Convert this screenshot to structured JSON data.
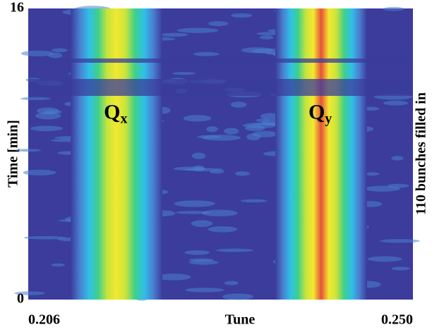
{
  "chart_data": {
    "type": "spectrogram",
    "x_label": "Tune",
    "y_label": "Time [min]",
    "right_label": "110 bunches filled in",
    "xlim": [
      0.206,
      0.25
    ],
    "xticks": [
      0.206,
      {
        "value": 0.25,
        "label": "0.250"
      }
    ],
    "ylim": [
      0,
      16
    ],
    "yticks": [
      0,
      16
    ],
    "background": "#3b3c9c",
    "colormap": [
      "#3b3c9c",
      "#4a7fd0",
      "#2fc0e8",
      "#3fd08a",
      "#c8e43c",
      "#f2e830",
      "#e8503a"
    ],
    "bands": [
      {
        "label": "Q",
        "subscript": "x",
        "tune": 0.2161,
        "peak_level": 5
      },
      {
        "label": "Q",
        "subscript": "y",
        "tune": 0.2395,
        "peak_level": 6
      }
    ]
  }
}
